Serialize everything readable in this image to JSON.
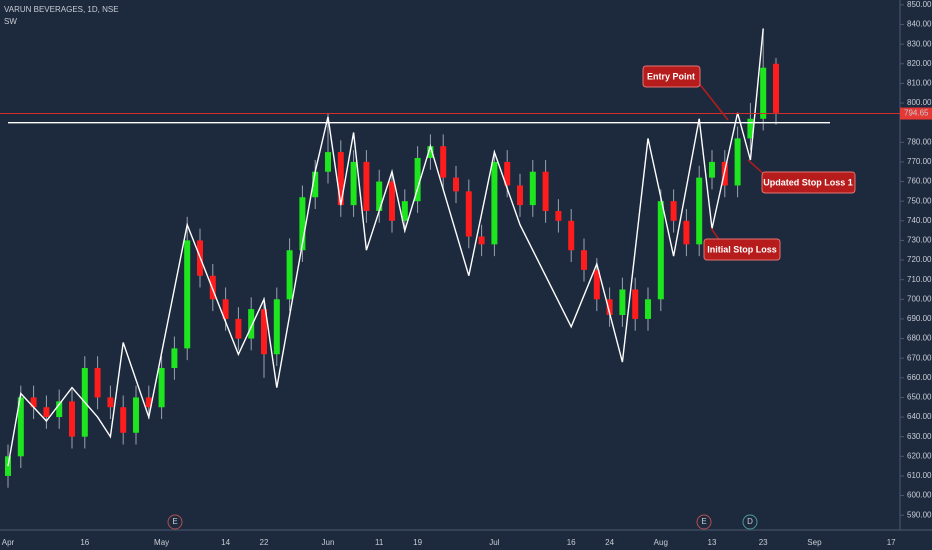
{
  "chart_data": {
    "type": "candlestick",
    "title": "VARUN BEVERAGES, 1D, NSE",
    "subtitle": "SW",
    "categories": [
      "Apr",
      null,
      null,
      null,
      null,
      null,
      "16",
      null,
      null,
      null,
      null,
      null,
      "May",
      null,
      null,
      null,
      null,
      "14",
      null,
      null,
      "22",
      null,
      null,
      null,
      null,
      "Jun",
      null,
      null,
      null,
      "11",
      null,
      null,
      "19",
      null,
      null,
      null,
      null,
      null,
      "Jul",
      null,
      null,
      null,
      null,
      null,
      "16",
      null,
      null,
      "24",
      null,
      null,
      null,
      "Aug",
      null,
      null,
      null,
      "13",
      null,
      null,
      null,
      "23",
      null
    ],
    "future_categories": [
      "Sep",
      "17"
    ],
    "open": [
      610,
      620,
      650,
      645,
      640,
      648,
      630,
      665,
      650,
      645,
      632,
      650,
      645,
      665,
      675,
      730,
      712,
      700,
      690,
      680,
      695,
      672,
      700,
      725,
      752,
      765,
      775,
      748,
      770,
      745,
      760,
      740,
      750,
      772,
      778,
      762,
      755,
      732,
      728,
      770,
      758,
      748,
      765,
      745,
      740,
      725,
      715,
      700,
      692,
      705,
      690,
      700,
      750,
      740,
      728,
      762,
      770,
      758,
      782,
      792,
      820
    ],
    "high": [
      626,
      656,
      656,
      651,
      654,
      654,
      671,
      671,
      656,
      651,
      656,
      656,
      671,
      681,
      742,
      736,
      718,
      706,
      696,
      701,
      701,
      706,
      731,
      758,
      771,
      795,
      781,
      776,
      776,
      766,
      766,
      756,
      778,
      784,
      784,
      768,
      761,
      738,
      776,
      776,
      764,
      771,
      771,
      751,
      746,
      731,
      721,
      706,
      711,
      711,
      706,
      756,
      756,
      746,
      768,
      776,
      776,
      788,
      800,
      838,
      823
    ],
    "low": [
      604,
      614,
      639,
      634,
      634,
      624,
      624,
      644,
      639,
      626,
      626,
      639,
      639,
      659,
      669,
      706,
      694,
      684,
      674,
      674,
      660,
      666,
      694,
      719,
      746,
      759,
      742,
      742,
      739,
      739,
      734,
      734,
      744,
      766,
      756,
      749,
      726,
      722,
      722,
      752,
      742,
      742,
      739,
      734,
      719,
      709,
      694,
      686,
      686,
      684,
      684,
      694,
      734,
      722,
      722,
      756,
      752,
      752,
      776,
      786,
      789
    ],
    "close": [
      620,
      650,
      645,
      640,
      648,
      630,
      665,
      650,
      645,
      632,
      650,
      645,
      665,
      675,
      730,
      712,
      700,
      690,
      680,
      695,
      672,
      700,
      725,
      752,
      765,
      775,
      748,
      770,
      745,
      760,
      740,
      750,
      772,
      778,
      762,
      755,
      732,
      728,
      770,
      758,
      748,
      765,
      745,
      740,
      725,
      715,
      700,
      692,
      705,
      690,
      700,
      750,
      740,
      728,
      762,
      770,
      758,
      782,
      792,
      818,
      795
    ],
    "up_color": "#1ee61e",
    "down_color": "#ff1c1c",
    "zigzag": {
      "color": "#ffffff",
      "x": [
        0,
        1,
        3,
        5,
        7,
        8,
        9,
        11,
        14,
        18,
        20,
        21,
        24,
        25,
        26,
        27,
        28,
        30,
        31,
        33,
        36,
        38,
        40,
        44,
        46,
        48,
        50,
        52,
        54,
        55,
        57,
        58,
        59
      ],
      "values": [
        615,
        652,
        638,
        655,
        640,
        630,
        678,
        640,
        738,
        672,
        700,
        655,
        765,
        793,
        748,
        785,
        725,
        765,
        735,
        778,
        712,
        775,
        738,
        686,
        718,
        668,
        782,
        722,
        792,
        736,
        795,
        771,
        838
      ]
    },
    "price_line": 794.65,
    "level": 790,
    "ylim": [
      585,
      852.5
    ],
    "yticks": [
      {
        "value": 590,
        "label": "590.00"
      },
      {
        "value": 600,
        "label": "600.00"
      },
      {
        "value": 610,
        "label": "610.00"
      },
      {
        "value": 620,
        "label": "620.00"
      },
      {
        "value": 630,
        "label": "630.00"
      },
      {
        "value": 640,
        "label": "640.00"
      },
      {
        "value": 650,
        "label": "650.00"
      },
      {
        "value": 660,
        "label": "660.00"
      },
      {
        "value": 670,
        "label": "670.00"
      },
      {
        "value": 680,
        "label": "680.00"
      },
      {
        "value": 690,
        "label": "690.00"
      },
      {
        "value": 700,
        "label": "700.00"
      },
      {
        "value": 710,
        "label": "710.00"
      },
      {
        "value": 720,
        "label": "720.00"
      },
      {
        "value": 730,
        "label": "730.00"
      },
      {
        "value": 740,
        "label": "740.00"
      },
      {
        "value": 750,
        "label": "750.00"
      },
      {
        "value": 760,
        "label": "760.00"
      },
      {
        "value": 770,
        "label": "770.00"
      },
      {
        "value": 780,
        "label": "780.00"
      },
      {
        "value": 800,
        "label": "800.00"
      },
      {
        "value": 810,
        "label": "810.00"
      },
      {
        "value": 820,
        "label": "820.00"
      },
      {
        "value": 830,
        "label": "830.00"
      },
      {
        "value": 840,
        "label": "840.00"
      },
      {
        "value": 850,
        "label": "850.00"
      }
    ],
    "annotations": [
      "Entry Point",
      "Updated Stop Loss 1",
      "Initial Stop Loss"
    ],
    "events": [
      "E",
      "E",
      "D"
    ]
  }
}
